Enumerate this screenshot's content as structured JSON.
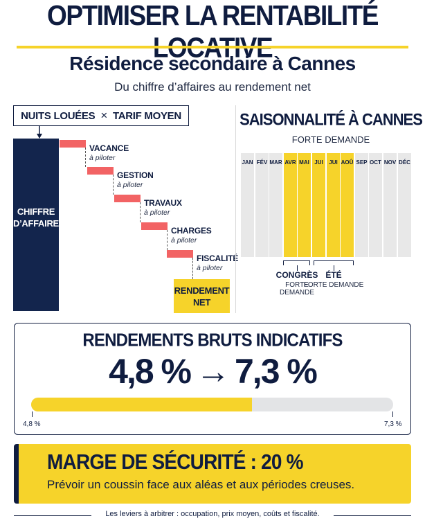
{
  "header": {
    "title": "OPTIMISER LA RENTABILITÉ LOCATIVE",
    "subtitle": "Résidence secondaire à Cannes",
    "tagline": "Du chiffre d’affaires au rendement net"
  },
  "waterfall": {
    "formula_left": "NUITS LOUÉES",
    "formula_op": "×",
    "formula_right": "TARIF MOYEN",
    "revenue_line1": "CHIFFRE",
    "revenue_line2": "D’AFFAIRES",
    "steps": [
      {
        "label": "VACANCE",
        "note": "à piloter"
      },
      {
        "label": "GESTION",
        "note": "à piloter"
      },
      {
        "label": "TRAVAUX",
        "note": "à piloter"
      },
      {
        "label": "CHARGES",
        "note": "à piloter"
      },
      {
        "label": "FISCALITÉ",
        "note": "à piloter"
      }
    ],
    "net_line1": "RENDEMENT",
    "net_line2": "NET",
    "colors": {
      "revenue": "#13254d",
      "deduction": "#f26364",
      "net": "#f6d32a"
    }
  },
  "seasonality": {
    "title": "SAISONNALITÉ À CANNES",
    "subtitle": "FORTE DEMANDE",
    "months": [
      {
        "label": "JAN",
        "high": false
      },
      {
        "label": "FÉV",
        "high": false
      },
      {
        "label": "MAR",
        "high": false
      },
      {
        "label": "AVR",
        "high": true
      },
      {
        "label": "MAI",
        "high": true
      },
      {
        "label": "JUI",
        "high": true
      },
      {
        "label": "JUI",
        "high": true
      },
      {
        "label": "AOÛ",
        "high": true
      },
      {
        "label": "SEP",
        "high": false
      },
      {
        "label": "OCT",
        "high": false
      },
      {
        "label": "NOV",
        "high": false
      },
      {
        "label": "DÉC",
        "high": false
      }
    ],
    "periods": [
      {
        "name": "CONGRÈS",
        "note": "FORTE DEMANDE"
      },
      {
        "name": "ÉTÉ",
        "note": "FORTE DEMANDE"
      }
    ],
    "colors": {
      "high": "#f6d32a",
      "low": "#e8e8e8"
    }
  },
  "yields": {
    "title": "RENDEMENTS BRUTS INDICATIFS",
    "from": "4,8 %",
    "arrow": "→",
    "to": "7,3 %",
    "bar_fill_fraction": 0.61,
    "min_label": "4,8 %",
    "max_label": "7,3 %"
  },
  "margin": {
    "title": "MARGE DE SÉCURITÉ : 20 %",
    "text": "Prévoir un coussin face aux aléas et aux périodes creuses."
  },
  "footer": {
    "text": "Les leviers à arbitrer : occupation, prix moyen, coûts et fiscalité."
  }
}
